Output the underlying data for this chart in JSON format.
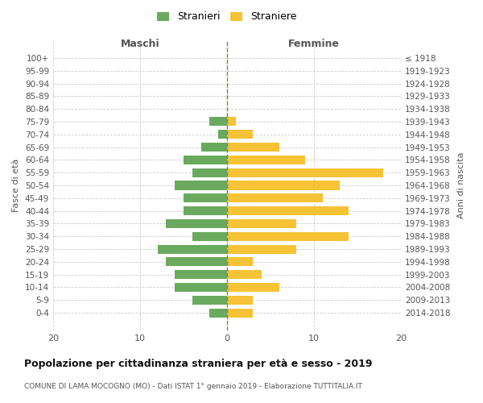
{
  "age_groups": [
    "100+",
    "95-99",
    "90-94",
    "85-89",
    "80-84",
    "75-79",
    "70-74",
    "65-69",
    "60-64",
    "55-59",
    "50-54",
    "45-49",
    "40-44",
    "35-39",
    "30-34",
    "25-29",
    "20-24",
    "15-19",
    "10-14",
    "5-9",
    "0-4"
  ],
  "birth_years": [
    "≤ 1918",
    "1919-1923",
    "1924-1928",
    "1929-1933",
    "1934-1938",
    "1939-1943",
    "1944-1948",
    "1949-1953",
    "1954-1958",
    "1959-1963",
    "1964-1968",
    "1969-1973",
    "1974-1978",
    "1979-1983",
    "1984-1988",
    "1989-1993",
    "1994-1998",
    "1999-2003",
    "2004-2008",
    "2009-2013",
    "2014-2018"
  ],
  "maschi": [
    0,
    0,
    0,
    0,
    0,
    2,
    1,
    3,
    5,
    4,
    6,
    5,
    5,
    7,
    4,
    8,
    7,
    6,
    6,
    4,
    2
  ],
  "femmine": [
    0,
    0,
    0,
    0,
    0,
    1,
    3,
    6,
    9,
    18,
    13,
    11,
    14,
    8,
    14,
    8,
    3,
    4,
    6,
    3,
    3
  ],
  "color_maschi": "#6aaa5e",
  "color_femmine": "#f5c335",
  "title": "Popolazione per cittadinanza straniera per età e sesso - 2019",
  "subtitle": "COMUNE DI LAMA MOCOGNO (MO) - Dati ISTAT 1° gennaio 2019 - Elaborazione TUTTITALIA.IT",
  "xlabel_left": "Maschi",
  "xlabel_right": "Femmine",
  "ylabel_left": "Fasce di età",
  "ylabel_right": "Anni di nascita",
  "xlim": 20,
  "legend_stranieri": "Stranieri",
  "legend_straniere": "Straniere",
  "bg_color": "#ffffff",
  "grid_color": "#cccccc",
  "dashed_line_color": "#808060"
}
